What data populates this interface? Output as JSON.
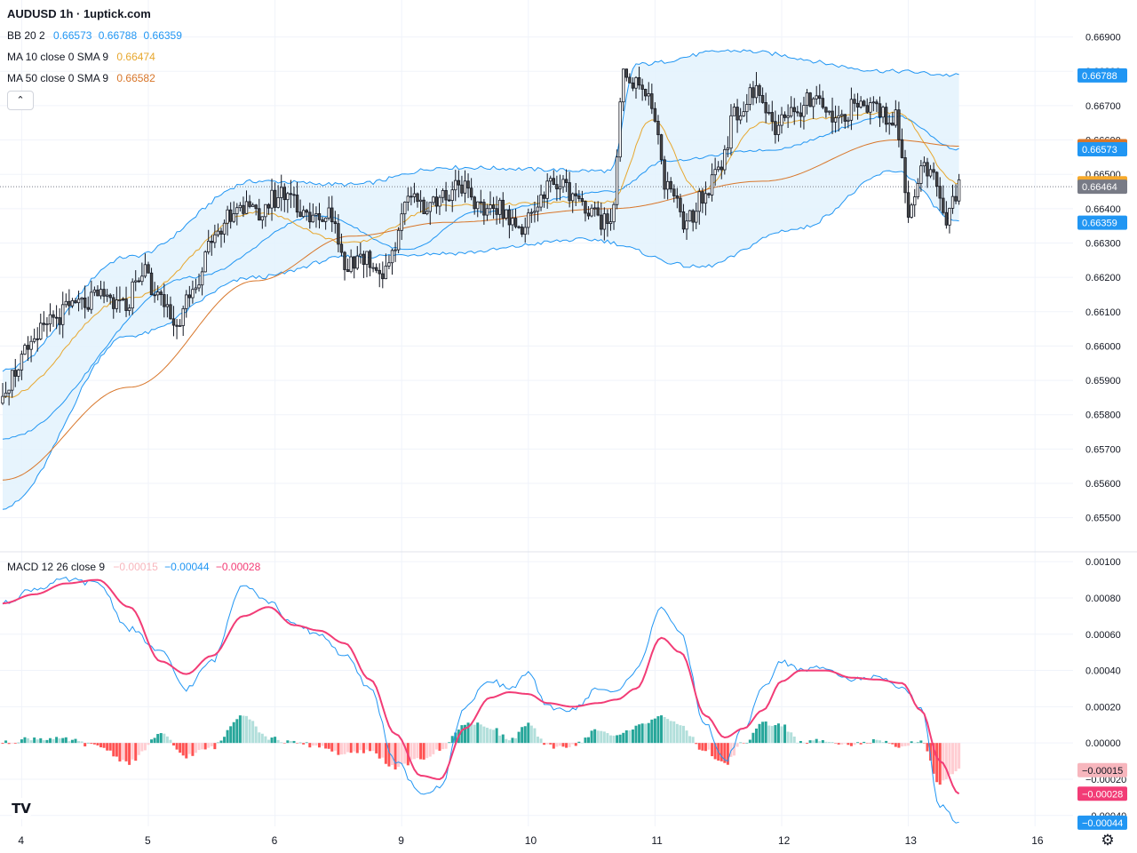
{
  "header": {
    "title": "AUDUSD 1h · 1uptick.com",
    "collapse_icon": "chevron-up-icon"
  },
  "legend": {
    "bb": {
      "label": "BB 20 2",
      "values": [
        "0.66573",
        "0.66788",
        "0.66359"
      ],
      "color": "#2196f3"
    },
    "ma10": {
      "label": "MA 10 close 0 SMA 9",
      "value": "0.66474",
      "color": "#e7a72e"
    },
    "ma50": {
      "label": "MA 50 close 0 SMA 9",
      "value": "0.66582",
      "color": "#d8762a"
    },
    "macd": {
      "label": "MACD 12 26 close 9",
      "values": [
        "−0.00015",
        "−0.00044",
        "−0.00028"
      ],
      "colors": [
        "#f7b6bd",
        "#2196f3",
        "#f23c76"
      ]
    }
  },
  "colors": {
    "up": "#ffffff",
    "down": "#4a4a4a",
    "wick": "#131722",
    "bb_line": "#2196f3",
    "bb_fill": "#e3f2fd",
    "hist_pos_strong": "#26a69a",
    "hist_pos_weak": "#b2dfdb",
    "hist_neg_strong": "#ff5252",
    "hist_neg_weak": "#ffcdd2",
    "macd_line": "#2196f3",
    "signal_line": "#f23c76"
  },
  "chart_data": [
    {
      "type": "candlestick",
      "title": "AUDUSD 1h · 1uptick.com",
      "xlabels": [
        "4",
        "5",
        "6",
        "9",
        "10",
        "11",
        "12",
        "13",
        "16"
      ],
      "y_ticks": [
        "0.66900",
        "0.66800",
        "0.66700",
        "0.66600",
        "0.66500",
        "0.66400",
        "0.66300",
        "0.66200",
        "0.66100",
        "0.66000",
        "0.65900",
        "0.65800",
        "0.65700",
        "0.65600",
        "0.65500"
      ],
      "ylim": [
        0.6545,
        0.6693
      ],
      "current_price": 0.66464,
      "price_badges": [
        {
          "value": "0.66788",
          "color": "#2196f3"
        },
        {
          "value": "0.66582",
          "color": "#d8762a"
        },
        {
          "value": "0.66573",
          "color": "#2196f3"
        },
        {
          "value": "0.66474",
          "color": "#f6a92b"
        },
        {
          "value": "0.66464",
          "color": "#787b86"
        },
        {
          "value": "0.66359",
          "color": "#2196f3"
        }
      ],
      "close_anchors": [
        [
          0,
          0.6588
        ],
        [
          8,
          0.6598
        ],
        [
          15,
          0.6608
        ],
        [
          24,
          0.6612
        ],
        [
          32,
          0.6614
        ],
        [
          38,
          0.6611
        ],
        [
          44,
          0.6622
        ],
        [
          50,
          0.6613
        ],
        [
          55,
          0.6606
        ],
        [
          60,
          0.6618
        ],
        [
          66,
          0.6629
        ],
        [
          74,
          0.6641
        ],
        [
          80,
          0.6638
        ],
        [
          86,
          0.6643
        ],
        [
          90,
          0.6645
        ],
        [
          94,
          0.664
        ],
        [
          100,
          0.6636
        ],
        [
          104,
          0.6638
        ],
        [
          108,
          0.6624
        ],
        [
          114,
          0.6626
        ],
        [
          120,
          0.6622
        ],
        [
          124,
          0.6629
        ],
        [
          128,
          0.6645
        ],
        [
          134,
          0.6641
        ],
        [
          140,
          0.6644
        ],
        [
          144,
          0.6648
        ],
        [
          150,
          0.6639
        ],
        [
          156,
          0.6641
        ],
        [
          162,
          0.6634
        ],
        [
          168,
          0.664
        ],
        [
          174,
          0.6648
        ],
        [
          180,
          0.6645
        ],
        [
          186,
          0.6638
        ],
        [
          192,
          0.6636
        ],
        [
          196,
          0.668
        ],
        [
          200,
          0.6676
        ],
        [
          205,
          0.667
        ],
        [
          210,
          0.6645
        ],
        [
          216,
          0.6636
        ],
        [
          222,
          0.6644
        ],
        [
          226,
          0.6653
        ],
        [
          232,
          0.6668
        ],
        [
          238,
          0.6674
        ],
        [
          244,
          0.6664
        ],
        [
          250,
          0.6667
        ],
        [
          256,
          0.6672
        ],
        [
          262,
          0.6665
        ],
        [
          268,
          0.6669
        ],
        [
          274,
          0.667
        ],
        [
          282,
          0.6666
        ],
        [
          286,
          0.664
        ],
        [
          290,
          0.6652
        ],
        [
          294,
          0.6648
        ],
        [
          298,
          0.6637
        ],
        [
          302,
          0.6646
        ]
      ],
      "bb_mid": [
        [
          0,
          0.6573
        ],
        [
          60,
          0.662
        ],
        [
          100,
          0.6638
        ],
        [
          128,
          0.6628
        ],
        [
          150,
          0.6639
        ],
        [
          192,
          0.6645
        ],
        [
          210,
          0.6654
        ],
        [
          240,
          0.6657
        ],
        [
          282,
          0.6667
        ],
        [
          302,
          0.66573
        ]
      ],
      "bb_upper": [
        [
          0,
          0.6593
        ],
        [
          40,
          0.6626
        ],
        [
          80,
          0.6648
        ],
        [
          110,
          0.6647
        ],
        [
          140,
          0.6652
        ],
        [
          192,
          0.6651
        ],
        [
          200,
          0.6682
        ],
        [
          230,
          0.6686
        ],
        [
          282,
          0.668
        ],
        [
          302,
          0.66788
        ]
      ],
      "bb_lower": [
        [
          0,
          0.6553
        ],
        [
          40,
          0.6603
        ],
        [
          80,
          0.662
        ],
        [
          110,
          0.6626
        ],
        [
          140,
          0.6627
        ],
        [
          185,
          0.6631
        ],
        [
          220,
          0.6623
        ],
        [
          250,
          0.6634
        ],
        [
          282,
          0.6651
        ],
        [
          302,
          0.66359
        ]
      ],
      "ma10": [
        [
          0,
          0.6585
        ],
        [
          40,
          0.6614
        ],
        [
          80,
          0.6639
        ],
        [
          110,
          0.663
        ],
        [
          140,
          0.6641
        ],
        [
          192,
          0.6642
        ],
        [
          205,
          0.6666
        ],
        [
          220,
          0.6645
        ],
        [
          240,
          0.6665
        ],
        [
          282,
          0.6668
        ],
        [
          302,
          0.66474
        ]
      ],
      "ma50": [
        [
          0,
          0.6561
        ],
        [
          40,
          0.6588
        ],
        [
          80,
          0.6619
        ],
        [
          110,
          0.6632
        ],
        [
          140,
          0.6636
        ],
        [
          192,
          0.664
        ],
        [
          240,
          0.6648
        ],
        [
          282,
          0.666
        ],
        [
          302,
          0.66582
        ]
      ]
    },
    {
      "type": "histogram+line",
      "title": "MACD 12 26 close 9",
      "y_ticks": [
        "0.00100",
        "0.00080",
        "0.00060",
        "0.00040",
        "0.00020",
        "0.00000",
        "−0.00020",
        "−0.00040"
      ],
      "ylim": [
        -0.00046,
        0.00104
      ],
      "badges": [
        {
          "value": "−0.00015",
          "color": "#f7b6bd",
          "text_color": "#131722"
        },
        {
          "value": "−0.00028",
          "color": "#f23c76",
          "text_color": "#ffffff"
        },
        {
          "value": "−0.00044",
          "color": "#2196f3",
          "text_color": "#ffffff"
        }
      ],
      "macd_anchors": [
        [
          0,
          0.00077
        ],
        [
          10,
          0.00085
        ],
        [
          20,
          0.0009
        ],
        [
          30,
          0.00088
        ],
        [
          40,
          0.00063
        ],
        [
          50,
          0.0005
        ],
        [
          58,
          0.0003
        ],
        [
          66,
          0.00045
        ],
        [
          76,
          0.00088
        ],
        [
          84,
          0.00078
        ],
        [
          92,
          0.00065
        ],
        [
          100,
          0.0006
        ],
        [
          108,
          0.00048
        ],
        [
          116,
          0.0003
        ],
        [
          124,
          -0.0001
        ],
        [
          132,
          -0.00028
        ],
        [
          138,
          -0.00025
        ],
        [
          146,
          0.0002
        ],
        [
          154,
          0.00035
        ],
        [
          160,
          0.0003
        ],
        [
          166,
          0.00038
        ],
        [
          172,
          0.0002
        ],
        [
          180,
          0.00018
        ],
        [
          188,
          0.0003
        ],
        [
          194,
          0.00028
        ],
        [
          200,
          0.0004
        ],
        [
          208,
          0.00075
        ],
        [
          214,
          0.0006
        ],
        [
          222,
          0.0001
        ],
        [
          228,
          -0.0001
        ],
        [
          234,
          8e-05
        ],
        [
          240,
          0.0003
        ],
        [
          246,
          0.00045
        ],
        [
          252,
          0.0004
        ],
        [
          260,
          0.00042
        ],
        [
          268,
          0.00035
        ],
        [
          276,
          0.00036
        ],
        [
          284,
          0.0003
        ],
        [
          290,
          0.0002
        ],
        [
          296,
          -0.00035
        ],
        [
          302,
          -0.00044
        ]
      ],
      "signal_anchors": [
        [
          0,
          0.00077
        ],
        [
          10,
          0.00082
        ],
        [
          20,
          0.00088
        ],
        [
          30,
          0.0009
        ],
        [
          40,
          0.00075
        ],
        [
          50,
          0.00045
        ],
        [
          58,
          0.00038
        ],
        [
          66,
          0.00048
        ],
        [
          76,
          0.0007
        ],
        [
          84,
          0.00075
        ],
        [
          92,
          0.00065
        ],
        [
          100,
          0.00062
        ],
        [
          108,
          0.00055
        ],
        [
          116,
          0.00035
        ],
        [
          124,
          5e-05
        ],
        [
          132,
          -0.00018
        ],
        [
          138,
          -0.0002
        ],
        [
          146,
          8e-05
        ],
        [
          154,
          0.00025
        ],
        [
          160,
          0.00028
        ],
        [
          166,
          0.00027
        ],
        [
          172,
          0.00022
        ],
        [
          180,
          0.0002
        ],
        [
          188,
          0.00022
        ],
        [
          194,
          0.00024
        ],
        [
          200,
          0.0003
        ],
        [
          208,
          0.00058
        ],
        [
          214,
          0.0005
        ],
        [
          222,
          0.00015
        ],
        [
          228,
          3e-05
        ],
        [
          234,
          8e-05
        ],
        [
          240,
          0.00018
        ],
        [
          246,
          0.00034
        ],
        [
          252,
          0.0004
        ],
        [
          260,
          0.0004
        ],
        [
          268,
          0.00036
        ],
        [
          276,
          0.00035
        ],
        [
          284,
          0.00033
        ],
        [
          290,
          0.00018
        ],
        [
          296,
          -0.0001
        ],
        [
          302,
          -0.00028
        ]
      ]
    }
  ]
}
